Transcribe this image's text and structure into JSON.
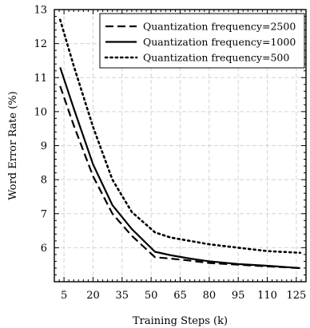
{
  "chart_data": {
    "type": "line",
    "xlabel": "Training Steps (k)",
    "ylabel": "Word Error Rate (%)",
    "xlim": [
      0,
      130
    ],
    "ylim": [
      5,
      13
    ],
    "xticks": [
      5,
      20,
      35,
      50,
      65,
      80,
      95,
      110,
      125
    ],
    "yticks": [
      6,
      7,
      8,
      9,
      10,
      11,
      12,
      13
    ],
    "grid": true,
    "legend_position": "top-right",
    "series": [
      {
        "name": "Quantization frequency=2500",
        "style": "dashed",
        "x": [
          3,
          10,
          20,
          30,
          40,
          52,
          60,
          70,
          80,
          95,
          110,
          127
        ],
        "y": [
          10.75,
          9.6,
          8.1,
          7.0,
          6.35,
          5.72,
          5.68,
          5.62,
          5.55,
          5.5,
          5.45,
          5.4
        ]
      },
      {
        "name": "Quantization frequency=1000",
        "style": "solid",
        "x": [
          3,
          10,
          20,
          30,
          40,
          52,
          60,
          70,
          80,
          95,
          110,
          127
        ],
        "y": [
          11.3,
          10.1,
          8.45,
          7.25,
          6.55,
          5.88,
          5.78,
          5.68,
          5.6,
          5.52,
          5.47,
          5.4
        ]
      },
      {
        "name": "Quantization frequency=500",
        "style": "dotted",
        "x": [
          3,
          10,
          20,
          30,
          40,
          52,
          60,
          70,
          80,
          95,
          110,
          127
        ],
        "y": [
          12.7,
          11.35,
          9.55,
          8.0,
          7.05,
          6.45,
          6.3,
          6.2,
          6.1,
          6.0,
          5.9,
          5.85
        ]
      }
    ]
  }
}
